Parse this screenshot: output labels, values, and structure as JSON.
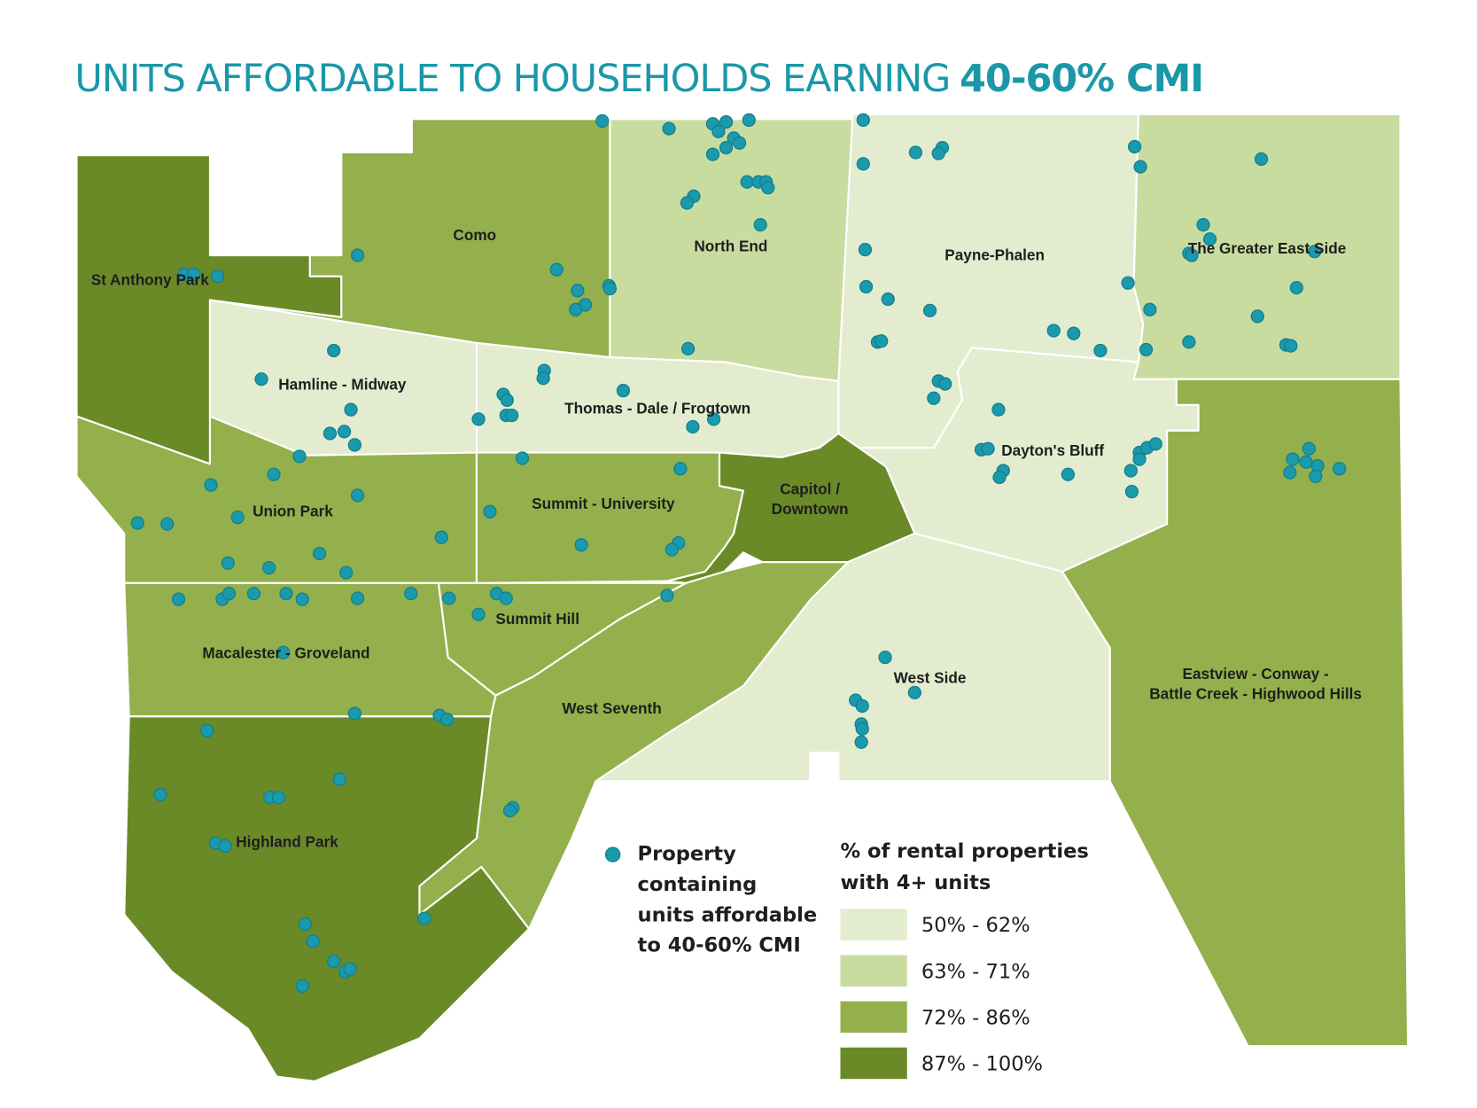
{
  "title": {
    "regular": "UNITS AFFORDABLE TO HOUSEHOLDS EARNING",
    "bold": "40-60% CMI"
  },
  "neighborhoods": [
    {
      "lines": [
        "Como"
      ]
    },
    {
      "lines": [
        "North End"
      ]
    },
    {
      "lines": [
        "Payne-Phalen"
      ]
    },
    {
      "lines": [
        "The Greater East Side"
      ]
    },
    {
      "lines": [
        "St Anthony Park"
      ]
    },
    {
      "lines": [
        "Hamline - Midway"
      ]
    },
    {
      "lines": [
        "Thomas - Dale / Frogtown"
      ]
    },
    {
      "lines": [
        "Dayton's Bluff"
      ]
    },
    {
      "lines": [
        "Union Park"
      ]
    },
    {
      "lines": [
        "Summit - University"
      ]
    },
    {
      "lines": [
        "Capitol /",
        "Downtown"
      ]
    },
    {
      "lines": [
        "Summit Hill"
      ]
    },
    {
      "lines": [
        "Macalester - Groveland"
      ]
    },
    {
      "lines": [
        "West Side"
      ]
    },
    {
      "lines": [
        "Eastview - Conway -",
        "Battle Creek - Highwood Hills"
      ]
    },
    {
      "lines": [
        "West Seventh"
      ]
    },
    {
      "lines": [
        "Highland Park"
      ]
    }
  ],
  "legend": {
    "points": [
      "Property",
      "containing",
      "units affordable",
      "to 40-60% CMI"
    ],
    "shading_title": [
      "% of rental properties",
      "with 4+ units"
    ],
    "classes": [
      {
        "label": "50% - 62%",
        "color": "#e3ecce"
      },
      {
        "label": "63% - 71%",
        "color": "#c9dca0"
      },
      {
        "label": "72% - 86%",
        "color": "#93b04c"
      },
      {
        "label": "87% - 100%",
        "color": "#6a8a28"
      }
    ]
  }
}
